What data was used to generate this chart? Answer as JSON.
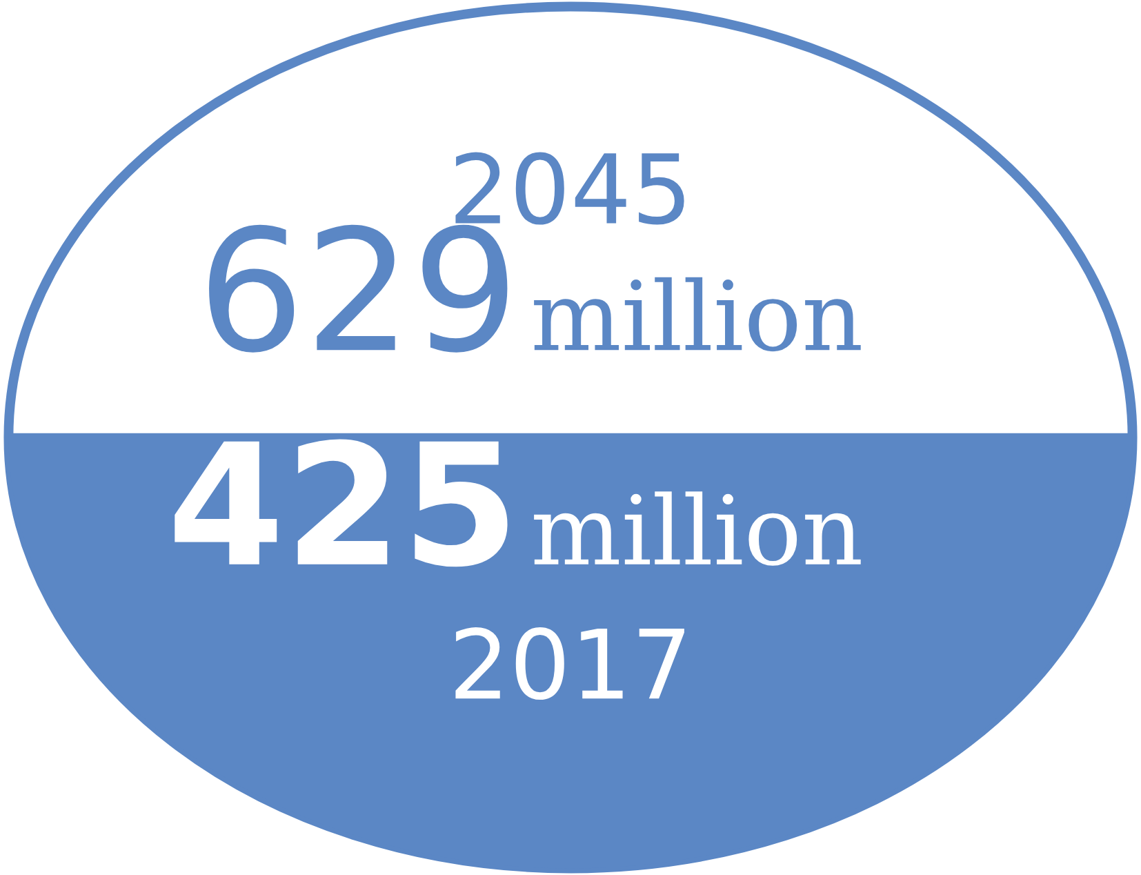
{
  "chart_data": {
    "type": "other",
    "categories": [
      "2045",
      "2017"
    ],
    "values": [
      629,
      425
    ],
    "annotations": [
      "million",
      "million"
    ],
    "color": "#5b87c5",
    "data_labels": true
  }
}
